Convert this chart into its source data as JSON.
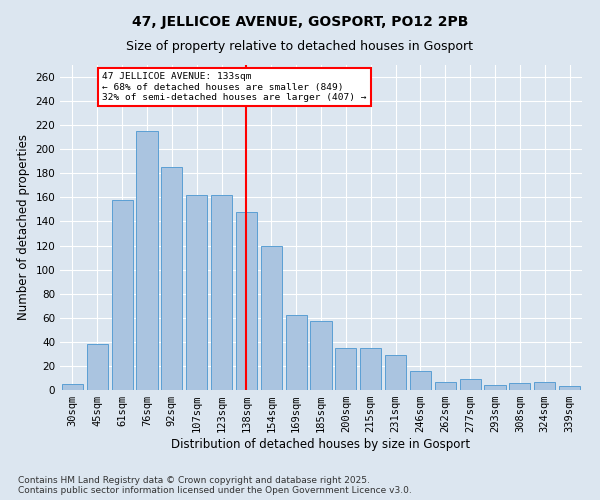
{
  "title": "47, JELLICOE AVENUE, GOSPORT, PO12 2PB",
  "subtitle": "Size of property relative to detached houses in Gosport",
  "xlabel": "Distribution of detached houses by size in Gosport",
  "ylabel": "Number of detached properties",
  "categories": [
    "30sqm",
    "45sqm",
    "61sqm",
    "76sqm",
    "92sqm",
    "107sqm",
    "123sqm",
    "138sqm",
    "154sqm",
    "169sqm",
    "185sqm",
    "200sqm",
    "215sqm",
    "231sqm",
    "246sqm",
    "262sqm",
    "277sqm",
    "293sqm",
    "308sqm",
    "324sqm",
    "339sqm"
  ],
  "values": [
    5,
    38,
    158,
    215,
    185,
    162,
    162,
    148,
    120,
    62,
    57,
    35,
    35,
    29,
    16,
    7,
    9,
    4,
    6,
    7,
    3
  ],
  "bar_color": "#aac4e0",
  "bar_edge_color": "#5a9fd4",
  "reference_line_x": 7,
  "reference_line_label": "47 JELLICOE AVENUE: 133sqm",
  "annotation_line1": "← 68% of detached houses are smaller (849)",
  "annotation_line2": "32% of semi-detached houses are larger (407) →",
  "annotation_box_color": "white",
  "annotation_box_edge_color": "red",
  "vline_color": "red",
  "ylim": [
    0,
    270
  ],
  "yticks": [
    0,
    20,
    40,
    60,
    80,
    100,
    120,
    140,
    160,
    180,
    200,
    220,
    240,
    260
  ],
  "background_color": "#dce6f0",
  "footer": "Contains HM Land Registry data © Crown copyright and database right 2025.\nContains public sector information licensed under the Open Government Licence v3.0.",
  "title_fontsize": 10,
  "subtitle_fontsize": 9,
  "axis_label_fontsize": 8.5,
  "tick_fontsize": 7.5,
  "footer_fontsize": 6.5
}
